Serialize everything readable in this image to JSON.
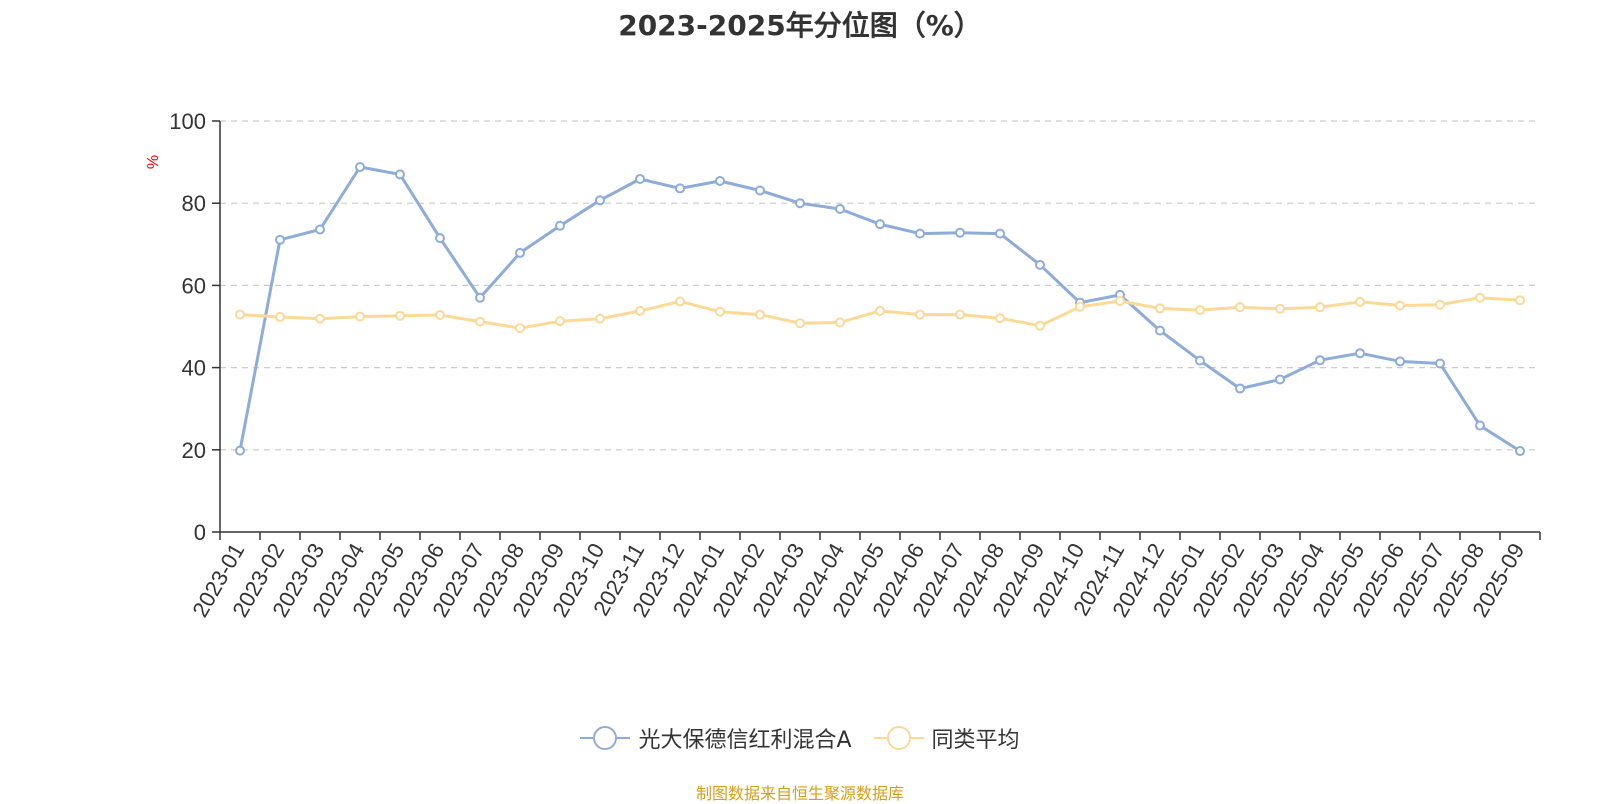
{
  "chart_data": {
    "type": "line",
    "title": "2023-2025年分位图（%）",
    "ylabel": "%",
    "xlabel": "",
    "ylim": [
      0,
      100
    ],
    "yticks": [
      0,
      20,
      40,
      60,
      80,
      100
    ],
    "grid": true,
    "legend_position": "bottom-center",
    "categories": [
      "2023-01",
      "2023-02",
      "2023-03",
      "2023-04",
      "2023-05",
      "2023-06",
      "2023-07",
      "2023-08",
      "2023-09",
      "2023-10",
      "2023-11",
      "2023-12",
      "2024-01",
      "2024-02",
      "2024-03",
      "2024-04",
      "2024-05",
      "2024-06",
      "2024-07",
      "2024-08",
      "2024-09",
      "2024-10",
      "2024-11",
      "2024-12",
      "2025-01",
      "2025-02",
      "2025-03",
      "2025-04",
      "2025-05",
      "2025-06",
      "2025-07",
      "2025-08",
      "2025-09"
    ],
    "series": [
      {
        "name": "光大保德信红利混合A",
        "color": "#8eacd9",
        "values": [
          19.8,
          71.1,
          73.6,
          88.8,
          87.0,
          71.5,
          57.0,
          67.9,
          74.5,
          80.7,
          85.9,
          83.6,
          85.4,
          83.1,
          80.0,
          78.6,
          74.9,
          72.6,
          72.8,
          72.6,
          65.0,
          55.8,
          57.7,
          49.0,
          41.7,
          34.9,
          37.1,
          41.8,
          43.5,
          41.5,
          41.0,
          25.9,
          19.7
        ]
      },
      {
        "name": "同类平均",
        "color": "#fcd997",
        "values": [
          52.9,
          52.3,
          51.9,
          52.4,
          52.6,
          52.8,
          51.2,
          49.6,
          51.3,
          51.9,
          53.8,
          56.1,
          53.6,
          52.9,
          50.8,
          51.0,
          53.8,
          52.9,
          52.9,
          52.0,
          50.2,
          54.8,
          56.2,
          54.4,
          54.0,
          54.7,
          54.3,
          54.7,
          56.0,
          55.1,
          55.3,
          57.0,
          56.4
        ]
      }
    ]
  },
  "footer": {
    "source_text": "制图数据来自恒生聚源数据库",
    "color": "#d4a017"
  },
  "colors": {
    "axis": "#333333",
    "grid": "#cccccc",
    "ylabel": "#ff0000"
  }
}
